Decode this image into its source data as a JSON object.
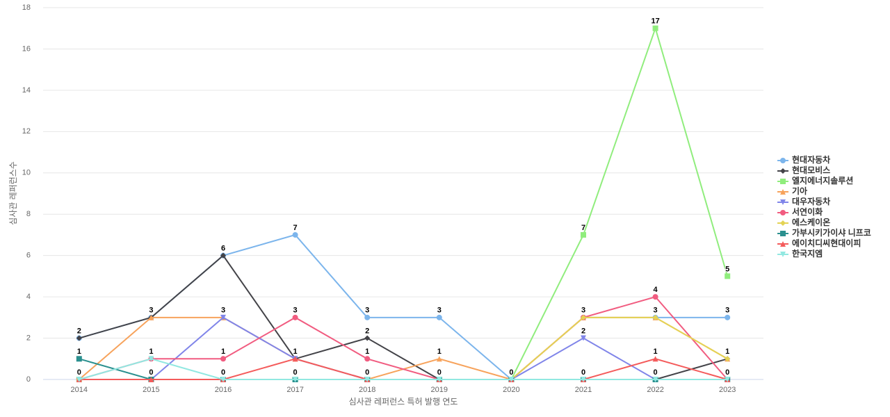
{
  "chart_data": {
    "type": "line",
    "x_label": "심사관 레퍼런스 특허 발행 연도",
    "y_label": "심사관 레퍼런스수",
    "categories": [
      "2014",
      "2015",
      "2016",
      "2017",
      "2018",
      "2019",
      "2020",
      "2021",
      "2022",
      "2023"
    ],
    "ylim": [
      0,
      18
    ],
    "yticks": [
      0,
      2,
      4,
      6,
      8,
      10,
      12,
      14,
      16,
      18
    ],
    "grid": true,
    "legend": "right",
    "series": [
      {
        "name": "현대자동차",
        "color": "#7cb5ec",
        "marker": "circle",
        "values": [
          2,
          3,
          6,
          7,
          3,
          3,
          0,
          3,
          3,
          3
        ]
      },
      {
        "name": "현대모비스",
        "color": "#434348",
        "marker": "diamond",
        "values": [
          2,
          3,
          6,
          1,
          2,
          0,
          0,
          0,
          0,
          1
        ]
      },
      {
        "name": "엘지에너지솔루션",
        "color": "#90ed7d",
        "marker": "square",
        "values": [
          0,
          0,
          0,
          0,
          0,
          0,
          0,
          7,
          17,
          5
        ]
      },
      {
        "name": "기아",
        "color": "#f7a35c",
        "marker": "triangle",
        "values": [
          0,
          3,
          3,
          1,
          0,
          1,
          0,
          3,
          3,
          1
        ]
      },
      {
        "name": "대우자동차",
        "color": "#8085e9",
        "marker": "triangle-down",
        "values": [
          0,
          0,
          3,
          1,
          0,
          0,
          0,
          2,
          0,
          0
        ]
      },
      {
        "name": "서연이화",
        "color": "#f15c80",
        "marker": "circle",
        "values": [
          0,
          1,
          1,
          3,
          1,
          0,
          0,
          3,
          4,
          0
        ]
      },
      {
        "name": "에스케이온",
        "color": "#e4d354",
        "marker": "diamond",
        "values": [
          0,
          0,
          0,
          0,
          0,
          0,
          0,
          3,
          3,
          1
        ]
      },
      {
        "name": "가부시키가이샤 니프코",
        "color": "#2b908f",
        "marker": "square",
        "values": [
          1,
          0,
          0,
          0,
          0,
          0,
          0,
          0,
          0,
          0
        ]
      },
      {
        "name": "에이치디씨현대이피",
        "color": "#f45b5b",
        "marker": "triangle",
        "values": [
          0,
          0,
          0,
          1,
          0,
          0,
          0,
          0,
          1,
          0
        ]
      },
      {
        "name": "한국지엠",
        "color": "#91e8e1",
        "marker": "triangle-down",
        "values": [
          0,
          1,
          0,
          0,
          0,
          0,
          0,
          0,
          0,
          0
        ]
      }
    ]
  }
}
